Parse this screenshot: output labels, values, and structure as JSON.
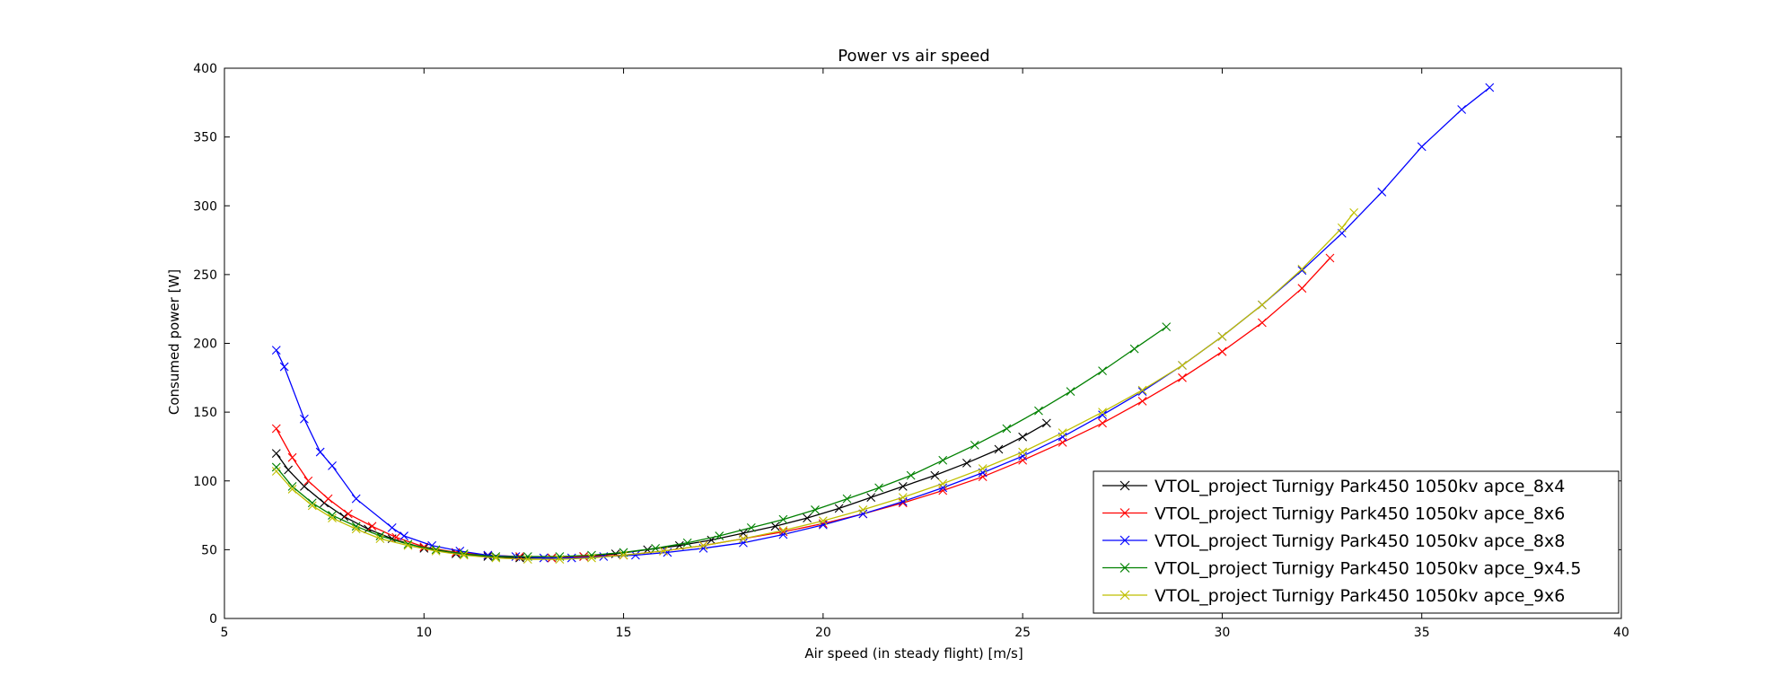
{
  "chart_data": {
    "type": "line",
    "title": "Power vs air speed",
    "xlabel": "Air speed (in steady flight) [m/s]",
    "ylabel": "Consumed power [W]",
    "xlim": [
      5,
      40
    ],
    "ylim": [
      0,
      400
    ],
    "xticks": [
      5,
      10,
      15,
      20,
      25,
      30,
      35,
      40
    ],
    "yticks": [
      0,
      50,
      100,
      150,
      200,
      250,
      300,
      350,
      400
    ],
    "grid": false,
    "legend_position": "lower-right",
    "marker": "x",
    "series": [
      {
        "name": "VTOL_project Turnigy Park450 1050kv apce_8x4",
        "color": "#000000",
        "x": [
          6.3,
          6.6,
          7.0,
          7.5,
          8.0,
          8.6,
          9.2,
          10.0,
          10.8,
          11.6,
          12.4,
          13.2,
          14.0,
          14.8,
          15.6,
          16.4,
          17.2,
          18.0,
          18.8,
          19.6,
          20.4,
          21.2,
          22.0,
          22.8,
          23.6,
          24.4,
          25.0,
          25.6
        ],
        "y": [
          120,
          108,
          96,
          84,
          74,
          65,
          58,
          51,
          47,
          45,
          44,
          44,
          45,
          47,
          50,
          53,
          57,
          62,
          67,
          73,
          80,
          88,
          96,
          104,
          113,
          123,
          132,
          142
        ]
      },
      {
        "name": "VTOL_project Turnigy Park450 1050kv apce_8x6",
        "color": "#ff0000",
        "x": [
          6.3,
          6.7,
          7.1,
          7.6,
          8.1,
          8.7,
          9.3,
          10.0,
          10.8,
          11.6,
          12.4,
          13.2,
          14.0,
          15.0,
          16.0,
          17.0,
          18.0,
          19.0,
          20.0,
          21.0,
          22.0,
          23.0,
          24.0,
          25.0,
          26.0,
          27.0,
          28.0,
          29.0,
          30.0,
          31.0,
          32.0,
          32.7
        ],
        "y": [
          138,
          117,
          100,
          87,
          76,
          67,
          59,
          52,
          48,
          46,
          45,
          44,
          45,
          46,
          49,
          53,
          58,
          63,
          69,
          76,
          84,
          93,
          103,
          115,
          128,
          142,
          158,
          175,
          194,
          215,
          240,
          262
        ]
      },
      {
        "name": "VTOL_project Turnigy Park450 1050kv apce_8x8",
        "color": "#0000ff",
        "x": [
          6.3,
          6.5,
          7.0,
          7.4,
          7.7,
          8.3,
          9.2,
          9.5,
          10.2,
          10.9,
          11.6,
          12.3,
          13.0,
          13.7,
          14.5,
          15.3,
          16.1,
          17.0,
          18.0,
          19.0,
          20.0,
          21.0,
          22.0,
          23.0,
          24.0,
          25.0,
          26.0,
          27.0,
          28.0,
          29.0,
          30.0,
          31.0,
          32.0,
          33.0,
          34.0,
          35.0,
          36.0,
          36.7
        ],
        "y": [
          195,
          183,
          145,
          121,
          111,
          87,
          66,
          60,
          53,
          49,
          46,
          45,
          44,
          44,
          45,
          46,
          48,
          51,
          55,
          61,
          68,
          76,
          85,
          95,
          106,
          118,
          132,
          148,
          165,
          184,
          205,
          228,
          253,
          280,
          310,
          343,
          370,
          386
        ]
      },
      {
        "name": "VTOL_project Turnigy Park450 1050kv apce_9x4.5",
        "color": "#008000",
        "x": [
          6.3,
          6.7,
          7.2,
          7.7,
          8.3,
          8.9,
          9.6,
          10.3,
          11.0,
          11.8,
          12.6,
          13.4,
          14.2,
          15.0,
          15.8,
          16.6,
          17.4,
          18.2,
          19.0,
          19.8,
          20.6,
          21.4,
          22.2,
          23.0,
          23.8,
          24.6,
          25.4,
          26.2,
          27.0,
          27.8,
          28.6
        ],
        "y": [
          110,
          96,
          84,
          75,
          67,
          60,
          54,
          50,
          47,
          45,
          45,
          45,
          46,
          48,
          51,
          55,
          60,
          66,
          72,
          79,
          87,
          95,
          104,
          115,
          126,
          138,
          151,
          165,
          180,
          196,
          212
        ]
      },
      {
        "name": "VTOL_project Turnigy Park450 1050kv apce_9x6",
        "color": "#bfbf00",
        "x": [
          6.3,
          6.7,
          7.2,
          7.7,
          8.3,
          8.9,
          9.6,
          10.3,
          11.0,
          11.8,
          12.6,
          13.4,
          14.2,
          15.0,
          16.0,
          17.0,
          18.0,
          19.0,
          20.0,
          21.0,
          22.0,
          23.0,
          24.0,
          25.0,
          26.0,
          27.0,
          28.0,
          29.0,
          30.0,
          31.0,
          32.0,
          33.0,
          33.3
        ],
        "y": [
          107,
          94,
          82,
          73,
          65,
          58,
          53,
          49,
          46,
          44,
          43,
          43,
          44,
          46,
          49,
          53,
          58,
          64,
          71,
          79,
          88,
          98,
          109,
          121,
          135,
          150,
          166,
          184,
          205,
          228,
          254,
          284,
          295
        ]
      }
    ]
  }
}
